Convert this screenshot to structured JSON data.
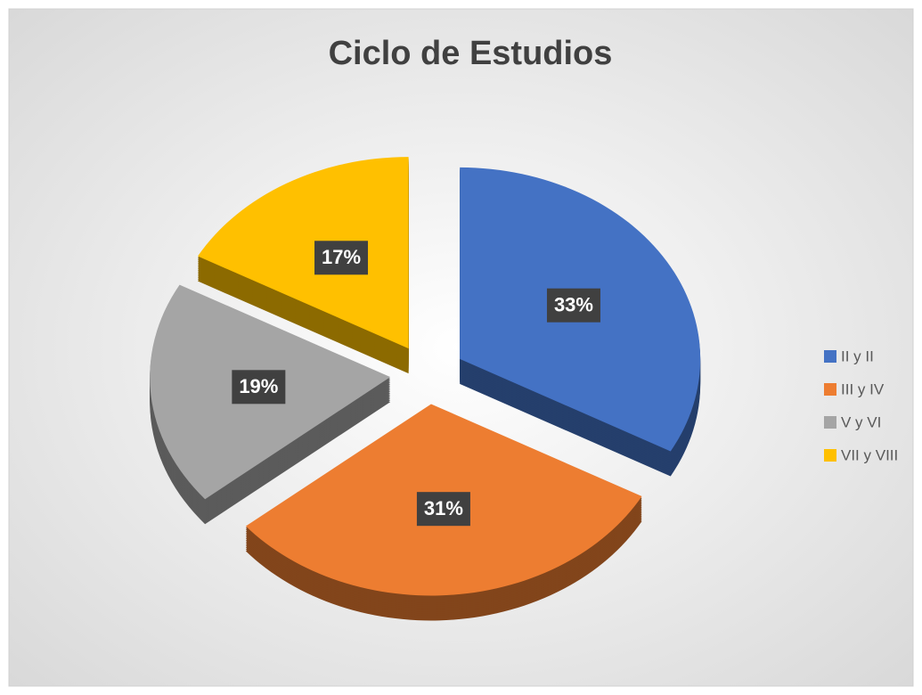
{
  "chart_data": {
    "type": "pie",
    "title": "Ciclo de Estudios",
    "categories": [
      "II y II",
      "III y IV",
      "V y VI",
      "VII y VIII"
    ],
    "values": [
      33,
      31,
      19,
      17
    ],
    "value_labels": [
      "33%",
      "31%",
      "19%",
      "17%"
    ],
    "colors": [
      "#4472c4",
      "#ed7d31",
      "#a5a5a5",
      "#ffc000"
    ],
    "legend": "right"
  }
}
